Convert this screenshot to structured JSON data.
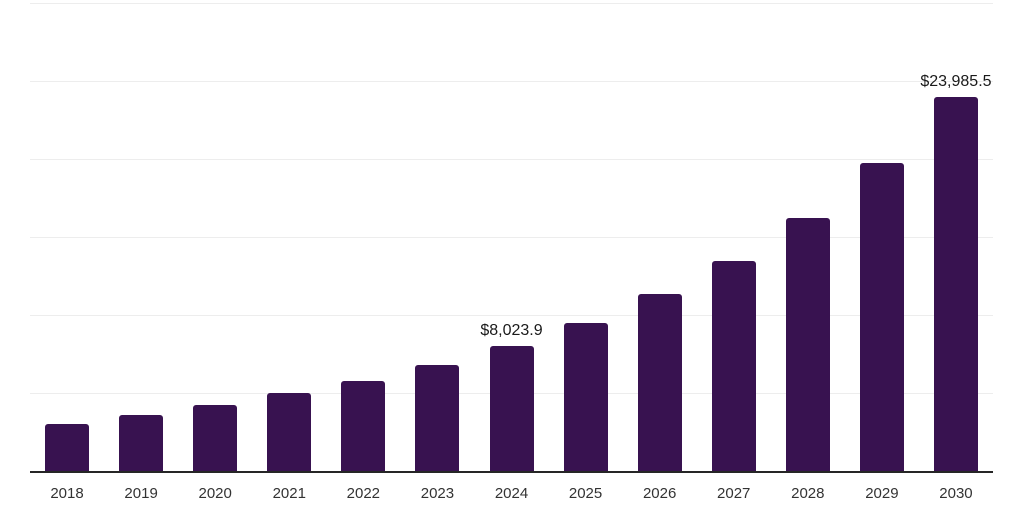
{
  "chart_data": {
    "type": "bar",
    "title": "",
    "xlabel": "",
    "ylabel": "",
    "categories": [
      "2018",
      "2019",
      "2020",
      "2021",
      "2022",
      "2023",
      "2024",
      "2025",
      "2026",
      "2027",
      "2028",
      "2029",
      "2030"
    ],
    "values": [
      3000,
      3600,
      4220,
      5000,
      5780,
      6800,
      8023.9,
      9500,
      11350,
      13480,
      16230,
      19720,
      23985.5
    ],
    "points": [
      {
        "year": "2018",
        "value": 3000
      },
      {
        "year": "2019",
        "value": 3600
      },
      {
        "year": "2020",
        "value": 4220
      },
      {
        "year": "2021",
        "value": 5000
      },
      {
        "year": "2022",
        "value": 5780
      },
      {
        "year": "2023",
        "value": 6800
      },
      {
        "year": "2024",
        "value": 8023.9,
        "label": "$8,023.9"
      },
      {
        "year": "2025",
        "value": 9500
      },
      {
        "year": "2026",
        "value": 11350
      },
      {
        "year": "2027",
        "value": 13480
      },
      {
        "year": "2028",
        "value": 16230
      },
      {
        "year": "2029",
        "value": 19720
      },
      {
        "year": "2030",
        "value": 23985.5,
        "label": "$23,985.5"
      }
    ],
    "annotated_values": [
      {
        "year": "2024",
        "label": "$8,023.9"
      },
      {
        "year": "2030",
        "label": "$23,985.5"
      }
    ],
    "ylim": [
      0,
      30170
    ],
    "grid_values": [
      5000,
      10000,
      15000,
      20000,
      25000,
      30000
    ],
    "grid_on": true,
    "legend": "none",
    "y_tick_labels_shown": false,
    "colors": {
      "bar": "#381250",
      "axis_line": "#262626",
      "gridline": "#ededed",
      "x_label": "#333333",
      "value_label": "#1a1a1a",
      "background": "#ffffff"
    }
  }
}
